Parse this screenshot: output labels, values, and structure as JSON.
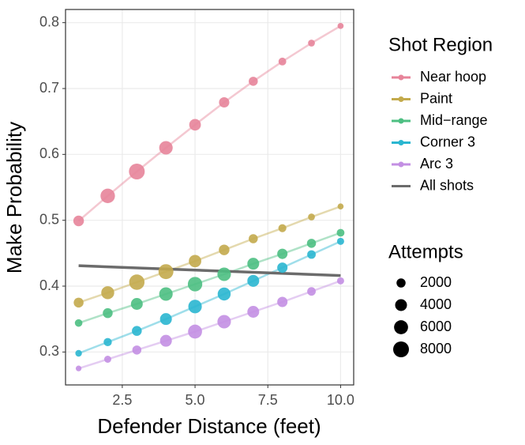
{
  "chart_data": {
    "type": "line",
    "x_label": "Defender Distance (feet)",
    "y_label": "Make Probability",
    "x": [
      1,
      2,
      3,
      4,
      5,
      6,
      7,
      8,
      9,
      10
    ],
    "series": [
      {
        "name": "Near hoop",
        "color": "#e7849a",
        "values": [
          0.499,
          0.537,
          0.574,
          0.61,
          0.645,
          0.679,
          0.711,
          0.741,
          0.769,
          0.795
        ],
        "sizes": [
          3000,
          6500,
          8000,
          5500,
          3800,
          2800,
          2000,
          1300,
          900,
          600
        ]
      },
      {
        "name": "Paint",
        "color": "#c3aa4c",
        "values": [
          0.375,
          0.39,
          0.406,
          0.422,
          0.438,
          0.455,
          0.472,
          0.488,
          0.505,
          0.521
        ],
        "sizes": [
          2500,
          5000,
          7500,
          7000,
          4500,
          3000,
          2000,
          1400,
          900,
          600
        ]
      },
      {
        "name": "Mid−range",
        "color": "#4dbf82",
        "values": [
          0.344,
          0.359,
          0.373,
          0.388,
          0.403,
          0.418,
          0.434,
          0.449,
          0.465,
          0.481
        ],
        "sizes": [
          1200,
          2500,
          4000,
          5500,
          6500,
          5500,
          4000,
          2800,
          2000,
          1300
        ]
      },
      {
        "name": "Corner 3",
        "color": "#2ab6d0",
        "values": [
          0.298,
          0.315,
          0.332,
          0.35,
          0.369,
          0.388,
          0.408,
          0.428,
          0.448,
          0.468
        ],
        "sizes": [
          800,
          1500,
          2500,
          4000,
          5500,
          5000,
          4000,
          2800,
          1700,
          1000
        ]
      },
      {
        "name": "Arc 3",
        "color": "#c38fe3",
        "values": [
          0.275,
          0.289,
          0.303,
          0.317,
          0.331,
          0.346,
          0.361,
          0.376,
          0.392,
          0.408
        ],
        "sizes": [
          500,
          1000,
          2000,
          4000,
          6000,
          5500,
          4000,
          2800,
          1700,
          1000
        ]
      },
      {
        "name": "All shots",
        "color": "#6b6b6b",
        "x": [
          1,
          10
        ],
        "values": [
          0.431,
          0.416
        ]
      }
    ],
    "xlim": [
      0.55,
      10.45
    ],
    "ylim": [
      0.25,
      0.82
    ],
    "xticks": [
      {
        "value": 2.5,
        "label": "2.5"
      },
      {
        "value": 5,
        "label": "5.0"
      },
      {
        "value": 7.5,
        "label": "7.5"
      },
      {
        "value": 10,
        "label": "10.0"
      }
    ],
    "yticks": [
      0.3,
      0.4,
      0.5,
      0.6,
      0.7,
      0.8
    ],
    "grid": true,
    "legend_title": "Shot Region",
    "size_legend": {
      "title": "Attempts",
      "values": [
        2000,
        4000,
        6000,
        8000
      ]
    }
  }
}
